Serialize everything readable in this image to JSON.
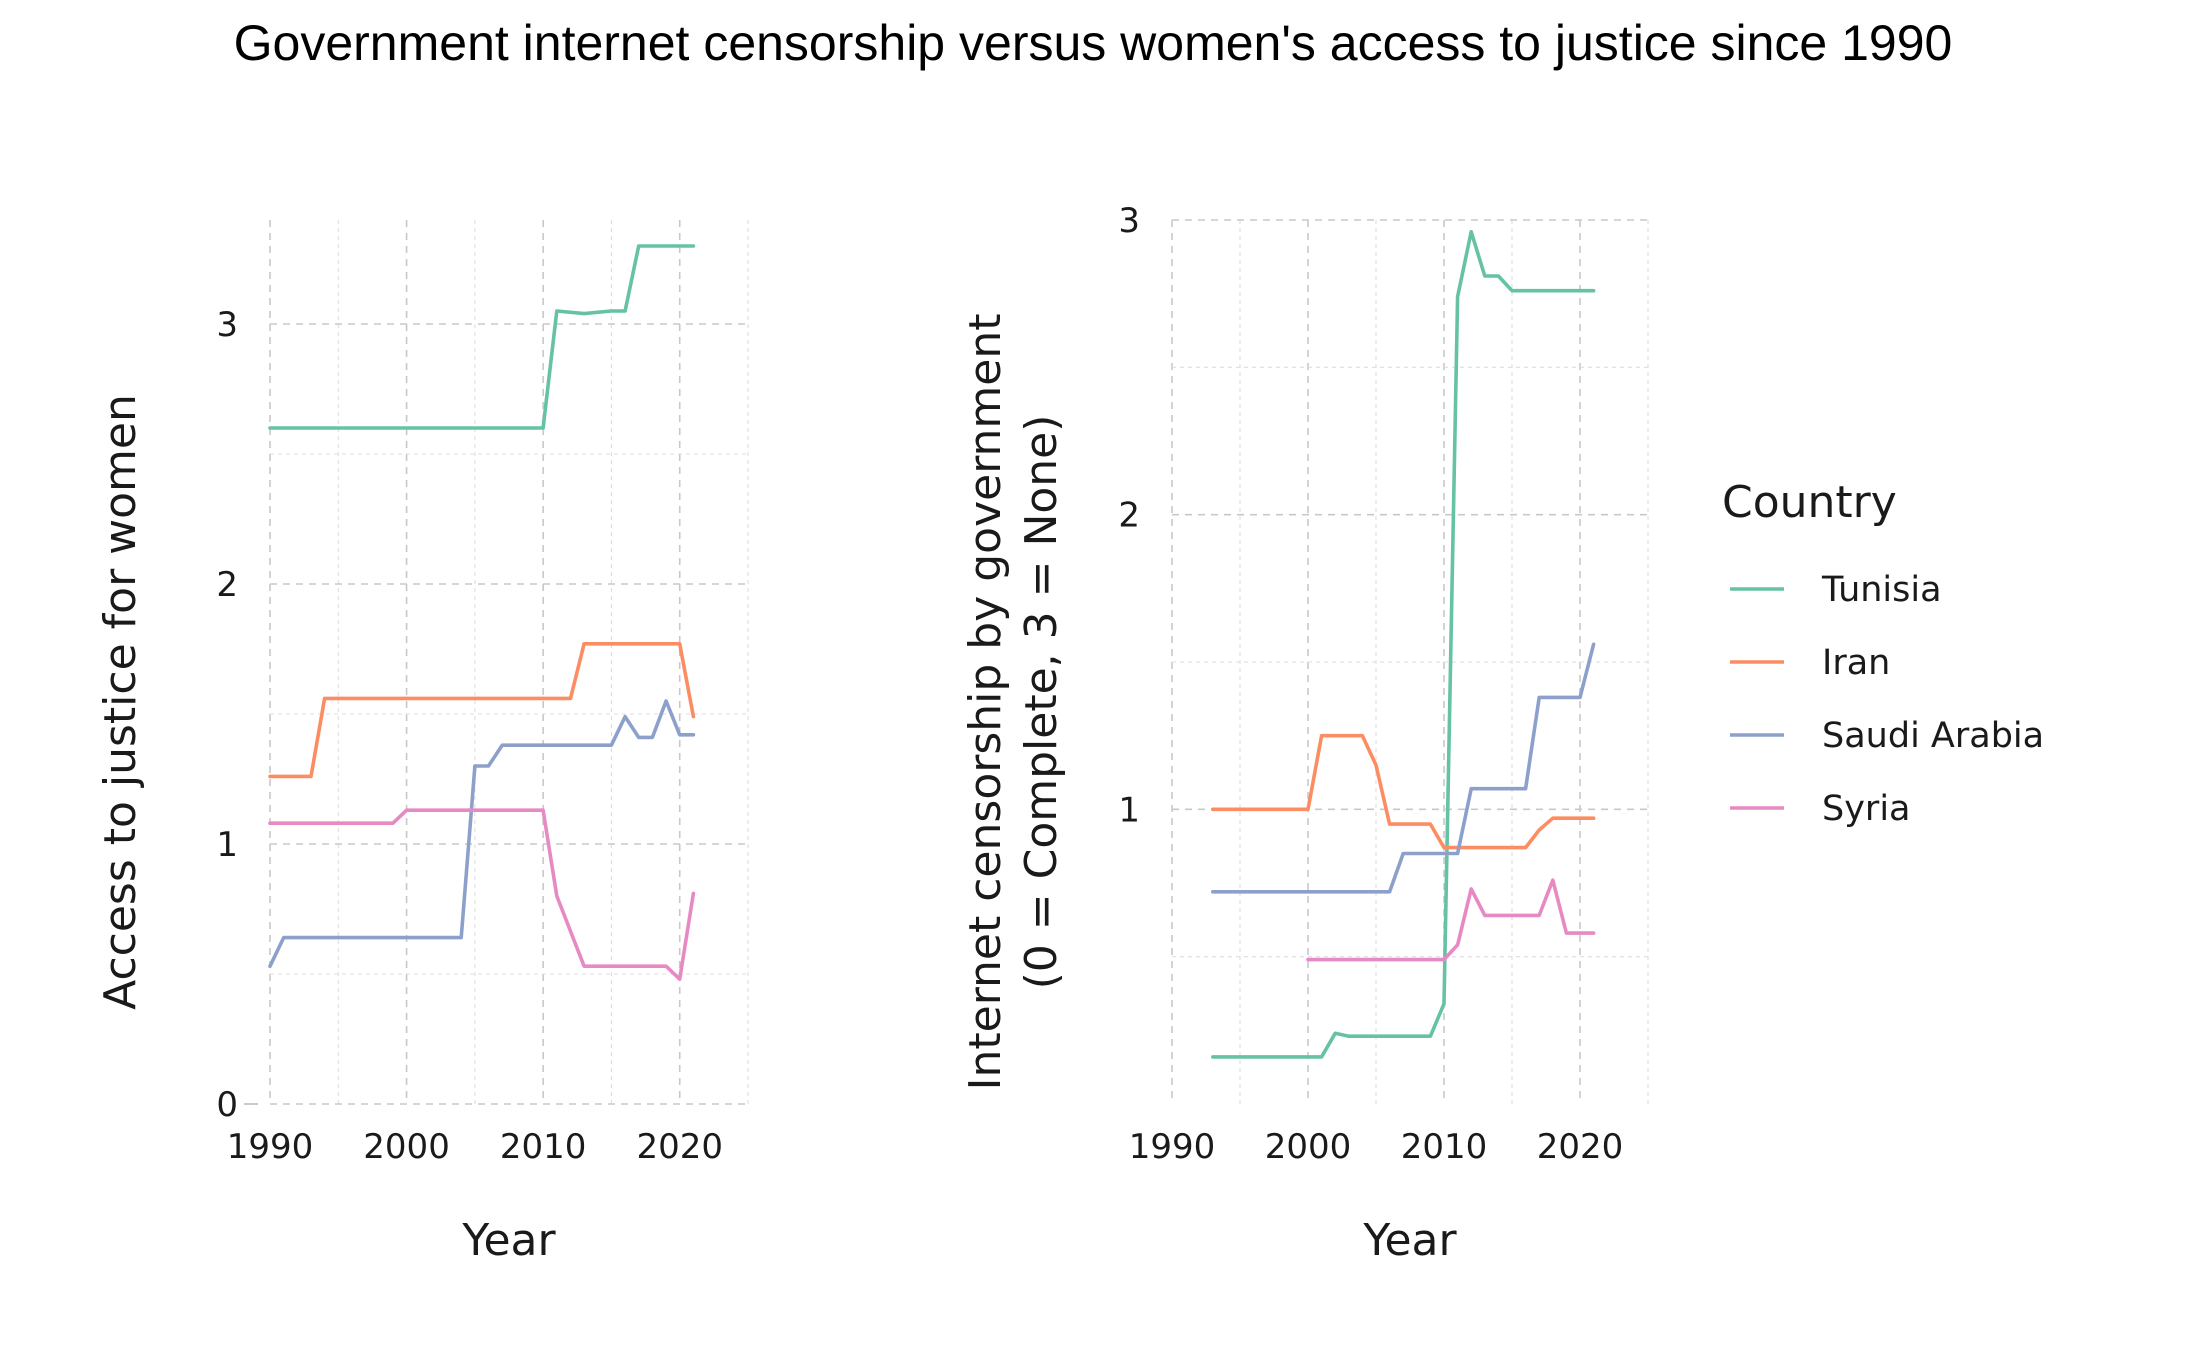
{
  "title": "Government internet censorship versus women's access to justice since 1990",
  "legend": {
    "title": "Country",
    "items": [
      {
        "name": "Tunisia",
        "color": "#66c2a5"
      },
      {
        "name": "Iran",
        "color": "#fc8d62"
      },
      {
        "name": "Saudi Arabia",
        "color": "#8da0cb"
      },
      {
        "name": "Syria",
        "color": "#e78ac3"
      }
    ]
  },
  "chart_data": [
    {
      "type": "line",
      "xlabel": "Year",
      "ylabel": "Access to justice for women",
      "xlim": [
        1990,
        2025
      ],
      "ylim": [
        0,
        3.4
      ],
      "xticks": [
        1990,
        2000,
        2010,
        2020
      ],
      "yticks": [
        0,
        1,
        2,
        3
      ],
      "grid": true,
      "series": [
        {
          "name": "Tunisia",
          "color": "#66c2a5",
          "x": [
            1990,
            2010,
            2011,
            2013,
            2015,
            2016,
            2017,
            2021
          ],
          "y": [
            2.6,
            2.6,
            3.05,
            3.04,
            3.05,
            3.05,
            3.3,
            3.3
          ]
        },
        {
          "name": "Iran",
          "color": "#fc8d62",
          "x": [
            1990,
            1993,
            1994,
            2012,
            2013,
            2020,
            2021
          ],
          "y": [
            1.26,
            1.26,
            1.56,
            1.56,
            1.77,
            1.77,
            1.49
          ]
        },
        {
          "name": "Saudi Arabia",
          "color": "#8da0cb",
          "x": [
            1990,
            1991,
            2004,
            2005,
            2006,
            2007,
            2015,
            2016,
            2017,
            2018,
            2019,
            2020,
            2021
          ],
          "y": [
            0.53,
            0.64,
            0.64,
            1.3,
            1.3,
            1.38,
            1.38,
            1.49,
            1.41,
            1.41,
            1.55,
            1.42,
            1.42
          ]
        },
        {
          "name": "Syria",
          "color": "#e78ac3",
          "x": [
            1990,
            1999,
            2000,
            2010,
            2011,
            2013,
            2019,
            2020,
            2021
          ],
          "y": [
            1.08,
            1.08,
            1.13,
            1.13,
            0.8,
            0.53,
            0.53,
            0.48,
            0.81
          ]
        }
      ]
    },
    {
      "type": "line",
      "xlabel": "Year",
      "ylabel": "Internet censorship by government\n(0 = Complete, 3 = None)",
      "xlim": [
        1990,
        2025
      ],
      "ylim": [
        0,
        3
      ],
      "xticks": [
        1990,
        2000,
        2010,
        2020
      ],
      "yticks": [
        1,
        2,
        3
      ],
      "grid": true,
      "series": [
        {
          "name": "Tunisia",
          "color": "#66c2a5",
          "x": [
            1993,
            2001,
            2002,
            2003,
            2009,
            2010,
            2011,
            2012,
            2013,
            2014,
            2015,
            2021
          ],
          "y": [
            0.16,
            0.16,
            0.24,
            0.23,
            0.23,
            0.34,
            2.74,
            2.96,
            2.81,
            2.81,
            2.76,
            2.76
          ]
        },
        {
          "name": "Iran",
          "color": "#fc8d62",
          "x": [
            1993,
            2000,
            2001,
            2004,
            2005,
            2006,
            2009,
            2010,
            2016,
            2017,
            2018,
            2021
          ],
          "y": [
            1.0,
            1.0,
            1.25,
            1.25,
            1.15,
            0.95,
            0.95,
            0.87,
            0.87,
            0.93,
            0.97,
            0.97
          ]
        },
        {
          "name": "Saudi Arabia",
          "color": "#8da0cb",
          "x": [
            1993,
            2006,
            2007,
            2011,
            2012,
            2016,
            2017,
            2020,
            2021
          ],
          "y": [
            0.72,
            0.72,
            0.85,
            0.85,
            1.07,
            1.07,
            1.38,
            1.38,
            1.56
          ]
        },
        {
          "name": "Syria",
          "color": "#e78ac3",
          "x": [
            2000,
            2010,
            2011,
            2012,
            2013,
            2017,
            2018,
            2019,
            2021
          ],
          "y": [
            0.49,
            0.49,
            0.54,
            0.73,
            0.64,
            0.64,
            0.76,
            0.58,
            0.58
          ]
        }
      ]
    }
  ]
}
